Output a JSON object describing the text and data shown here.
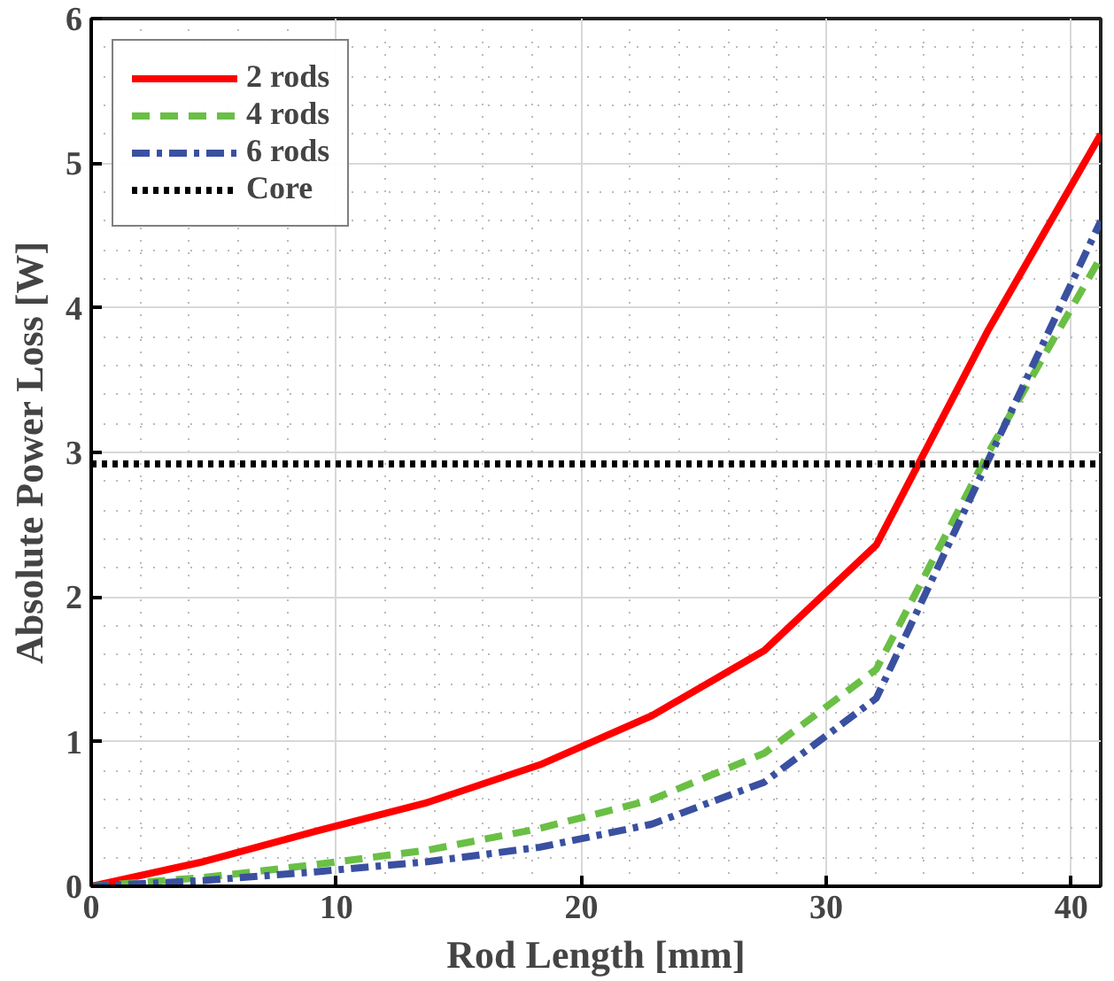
{
  "chart_data": {
    "type": "line",
    "xlabel": "Rod Length [mm]",
    "ylabel": "Absolute Power Loss [W]",
    "x": [
      0,
      4.58,
      9.16,
      13.73,
      18.31,
      22.89,
      27.47,
      32.04,
      36.62,
      41.2
    ],
    "series": [
      {
        "name": "2 rods",
        "color": "#ff0000",
        "line_style": "solid",
        "values": [
          0,
          0.17,
          0.38,
          0.58,
          0.84,
          1.18,
          1.63,
          2.36,
          3.85,
          5.2
        ]
      },
      {
        "name": "4 rods",
        "color": "#6abf45",
        "line_style": "dashed",
        "values": [
          0,
          0.06,
          0.15,
          0.25,
          0.4,
          0.6,
          0.92,
          1.5,
          3.0,
          4.35
        ]
      },
      {
        "name": "6 rods",
        "color": "#3a50a0",
        "line_style": "dashdot",
        "values": [
          0,
          0.04,
          0.1,
          0.17,
          0.27,
          0.43,
          0.72,
          1.3,
          2.95,
          4.6
        ]
      }
    ],
    "ref_lines": [
      {
        "axis": "y",
        "value": 2.92,
        "label": "Core",
        "color": "#000000",
        "line_style": "dotted"
      }
    ],
    "xlim": [
      0,
      41.2
    ],
    "ylim": [
      0,
      6
    ],
    "xticks": [
      0,
      10,
      20,
      30,
      40
    ],
    "yticks": [
      0,
      1,
      2,
      3,
      4,
      5,
      6
    ],
    "grid": true,
    "legend": "top left"
  }
}
